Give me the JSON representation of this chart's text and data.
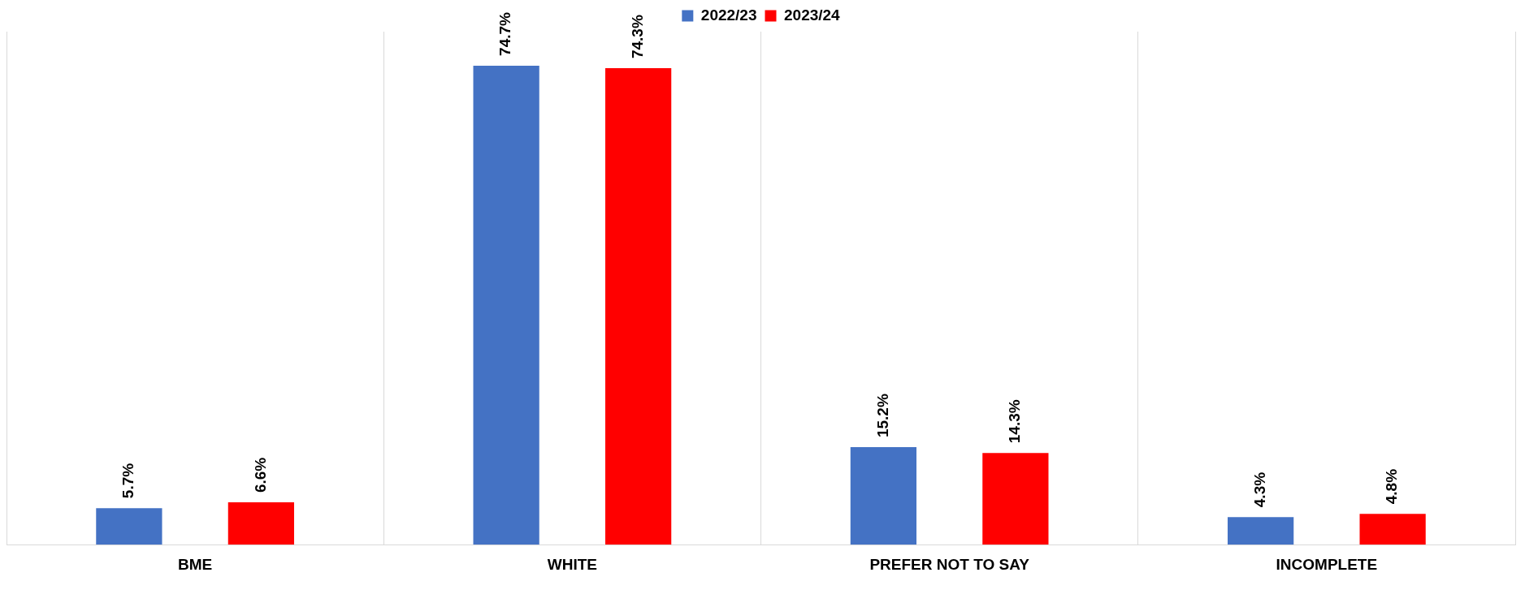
{
  "chart_data": {
    "type": "bar",
    "categories": [
      "BME",
      "WHITE",
      "PREFER NOT TO SAY",
      "INCOMPLETE"
    ],
    "series": [
      {
        "name": "2022/23",
        "color": "#4472c4",
        "values": [
          5.7,
          74.7,
          15.2,
          4.3
        ],
        "value_labels": [
          "5.7%",
          "74.7%",
          "15.2%",
          "4.3%"
        ]
      },
      {
        "name": "2023/24",
        "color": "#ff0000",
        "values": [
          6.6,
          74.3,
          14.3,
          4.8
        ],
        "value_labels": [
          "6.6%",
          "74.3%",
          "14.3%",
          "4.8%"
        ]
      }
    ],
    "grid": "x",
    "legend": "top"
  }
}
